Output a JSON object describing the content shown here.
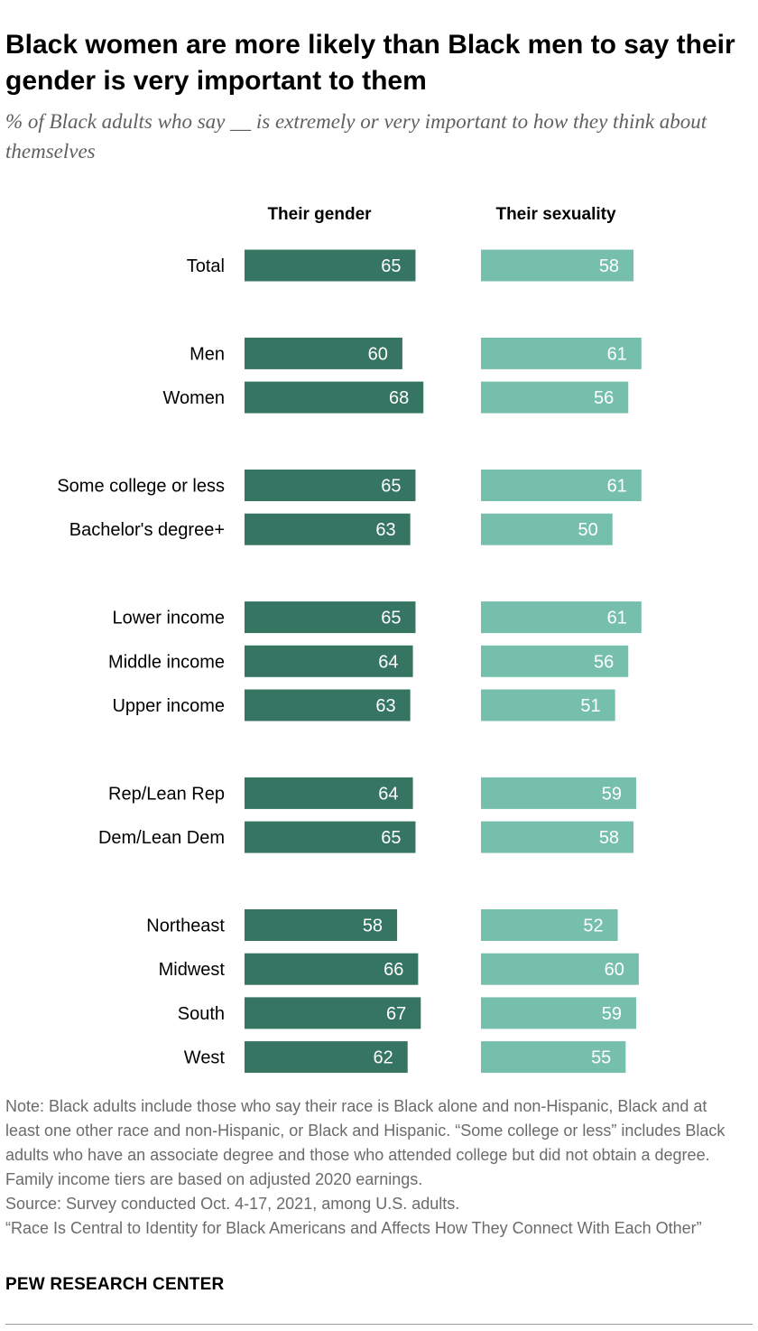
{
  "title": "Black women are more likely than Black men to say their gender is very important to them",
  "subtitle": "% of Black adults who say __ is extremely or very important to how they think about themselves",
  "colors": {
    "gender": "#357562",
    "sexuality": "#77bfad",
    "label_text": "#ffffff"
  },
  "chart_data": {
    "type": "bar",
    "orientation": "horizontal",
    "categories": [
      "Total",
      "Men",
      "Women",
      "Some college or less",
      "Bachelor's degree+",
      "Lower income",
      "Middle income",
      "Upper income",
      "Rep/Lean Rep",
      "Dem/Lean Dem",
      "Northeast",
      "Midwest",
      "South",
      "West"
    ],
    "groups": [
      [
        "Total"
      ],
      [
        "Men",
        "Women"
      ],
      [
        "Some college or less",
        "Bachelor's degree+"
      ],
      [
        "Lower income",
        "Middle income",
        "Upper income"
      ],
      [
        "Rep/Lean Rep",
        "Dem/Lean Dem"
      ],
      [
        "Northeast",
        "Midwest",
        "South",
        "West"
      ]
    ],
    "series": [
      {
        "name": "Their gender",
        "values": [
          65,
          60,
          68,
          65,
          63,
          65,
          64,
          63,
          64,
          65,
          58,
          66,
          67,
          62
        ]
      },
      {
        "name": "Their sexuality",
        "values": [
          58,
          61,
          56,
          61,
          50,
          61,
          56,
          51,
          59,
          58,
          52,
          60,
          59,
          55
        ]
      }
    ],
    "xlim": [
      0,
      100
    ],
    "data_labels": true
  },
  "notes": {
    "note": "Note: Black adults include those who say their race is Black alone and non-Hispanic, Black and at least one other race and non-Hispanic, or Black and Hispanic. “Some college or less” includes Black adults who have an associate degree and those who attended college but did not obtain a degree. Family income tiers are based on adjusted 2020 earnings.",
    "source": "Source: Survey conducted Oct. 4-17, 2021, among U.S. adults.",
    "report": "“Race Is Central to Identity for Black Americans and Affects How They Connect With Each Other”"
  },
  "brand": "PEW RESEARCH CENTER"
}
